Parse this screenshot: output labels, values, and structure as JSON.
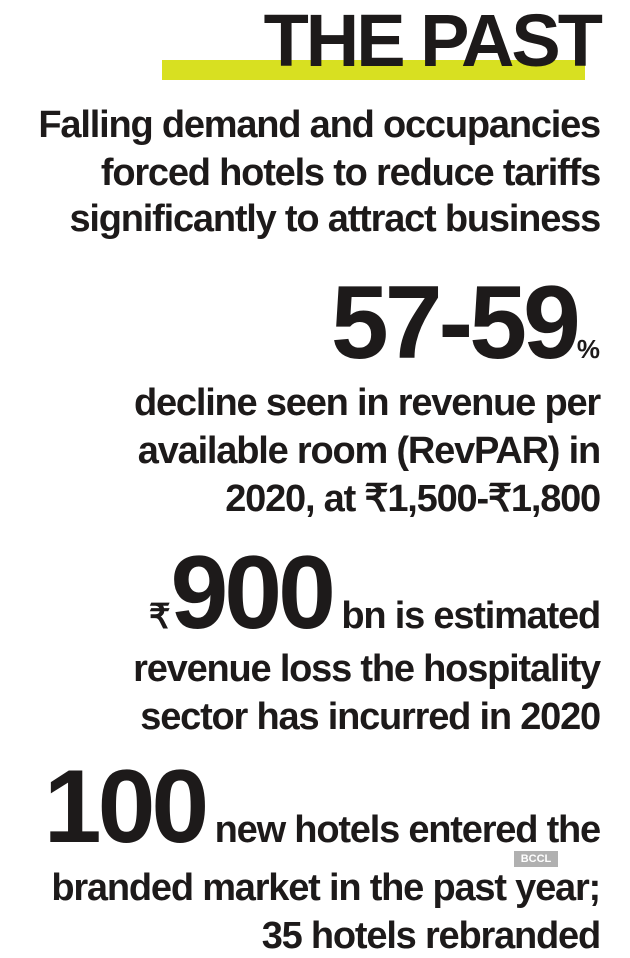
{
  "title": "THE PAST",
  "accent_color": "#d8e021",
  "intro": [
    "Falling demand and occupancies",
    "forced hotels to reduce tariffs",
    "significantly to attract business"
  ],
  "stat1": {
    "value": "57-59",
    "unit": "%",
    "lines": [
      "decline seen in revenue per",
      "available room (RevPAR) in",
      "2020, at ₹1,500-₹1,800"
    ]
  },
  "stat2": {
    "currency": "₹",
    "value": "900",
    "lead": "bn is estimated",
    "lines": [
      "revenue loss the hospitality",
      "sector has incurred in 2020"
    ]
  },
  "stat3": {
    "value": "100",
    "lead": "new hotels entered the",
    "lines": [
      "branded market in the past year;",
      "35 hotels rebranded"
    ]
  },
  "watermark": "BCCL"
}
